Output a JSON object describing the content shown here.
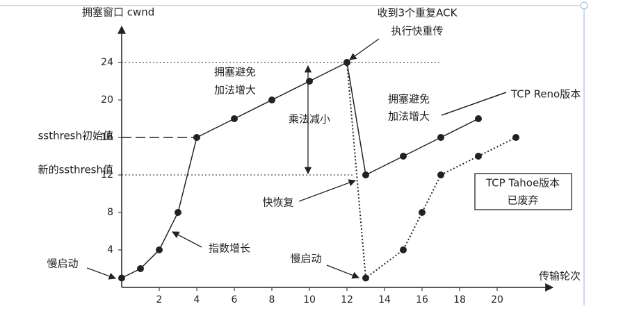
{
  "chart_data": {
    "type": "line",
    "y_label": "拥塞窗口 cwnd",
    "x_label": "传输轮次",
    "xlim": [
      0,
      22
    ],
    "ylim": [
      0,
      26
    ],
    "xticks": [
      2,
      4,
      6,
      8,
      10,
      12,
      14,
      16,
      18,
      20
    ],
    "yticks": [
      4,
      8,
      12,
      16,
      20,
      24
    ],
    "series": [
      {
        "color": "#222222",
        "style": "solid",
        "x": [
          0,
          1,
          2,
          3,
          4,
          6,
          8,
          10,
          12
        ],
        "values": [
          1,
          2,
          4,
          8,
          16,
          18,
          20,
          22,
          24
        ]
      },
      {
        "name": "TCP Reno版本",
        "color": "#222222",
        "style": "solid",
        "x": [
          12,
          13,
          15,
          17,
          19
        ],
        "values": [
          24,
          12,
          14,
          16,
          18
        ]
      },
      {
        "name": "TCP Tahoe版本",
        "color": "#222222",
        "style": "dotted",
        "x": [
          12,
          13,
          15,
          16,
          17,
          19,
          21
        ],
        "values": [
          24,
          1,
          4,
          8,
          12,
          14,
          16
        ]
      }
    ],
    "annotations": {
      "dup_ack": "收到3个重复ACK",
      "fast_retransmit": "执行快重传",
      "ca1_a": "拥塞避免",
      "ca1_b": "加法增大",
      "md": "乘法减小",
      "ca2_a": "拥塞避免",
      "ca2_b": "加法增大",
      "fast_recovery": "快恢复",
      "exp_growth": "指数增长",
      "slow_start1": "慢启动",
      "slow_start2": "慢启动",
      "ssthresh_init": "ssthresh初始值",
      "ssthresh_new": "新的ssthresh值",
      "deprecated": "已废弃"
    }
  }
}
